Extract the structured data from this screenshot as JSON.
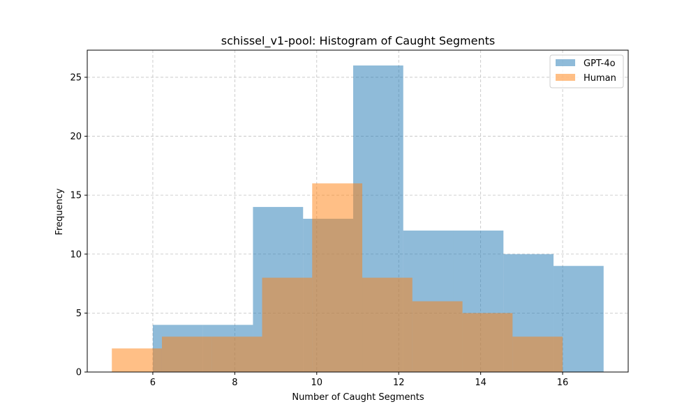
{
  "chart_data": {
    "type": "bar",
    "title": "schissel_v1-pool: Histogram of Caught Segments",
    "xlabel": "Number of Caught Segments",
    "ylabel": "Frequency",
    "xlim": [
      4.4,
      17.6
    ],
    "ylim": [
      0,
      27.3
    ],
    "xticks": [
      6,
      8,
      10,
      12,
      14,
      16
    ],
    "yticks": [
      0,
      5,
      10,
      15,
      20,
      25
    ],
    "grid": true,
    "legend_position": "top-right",
    "series": [
      {
        "name": "GPT-4o",
        "color": "#1f77b4",
        "opacity": 0.5,
        "bin_edges": [
          6,
          7.222,
          8.444,
          9.667,
          10.889,
          12.111,
          13.333,
          14.556,
          15.778,
          17
        ],
        "values": [
          4,
          4,
          14,
          13,
          26,
          12,
          12,
          10,
          9
        ]
      },
      {
        "name": "Human",
        "color": "#ff7f0e",
        "opacity": 0.5,
        "bin_edges": [
          5,
          6.222,
          7.444,
          8.667,
          9.889,
          11.111,
          12.333,
          13.556,
          14.778,
          16
        ],
        "values": [
          2,
          3,
          3,
          8,
          16,
          8,
          6,
          5,
          3
        ]
      }
    ]
  }
}
